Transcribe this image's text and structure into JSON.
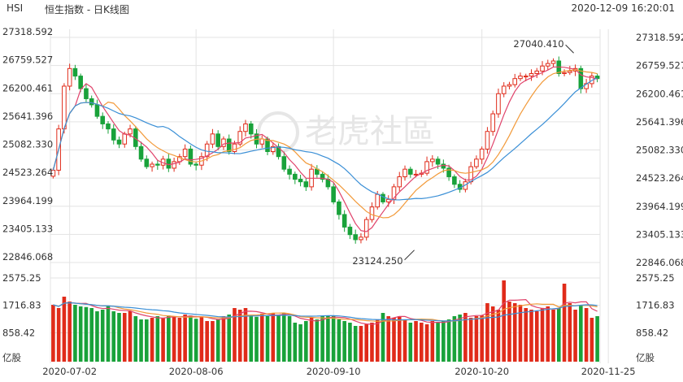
{
  "header": {
    "symbol": "HSI",
    "title": "恒生指数 - 日K线图",
    "datetime": "2020-12-09 16:20:01"
  },
  "watermark": "老虎社區",
  "colors": {
    "up": "#e02b1a",
    "down": "#19a23a",
    "ma5": "#e0436b",
    "ma10": "#f29a3a",
    "ma20": "#3a8fd6",
    "grid": "#e3e3e3"
  },
  "chart_data": [
    {
      "type": "candlestick",
      "title": "",
      "y_ticks": [
        "27318.592",
        "26759.527",
        "26200.461",
        "25641.396",
        "25082.330",
        "24523.264",
        "23964.199",
        "23405.133",
        "22846.068"
      ],
      "ylim": [
        22846.068,
        27318.592
      ],
      "x_ticks": [
        {
          "index": 3,
          "label": "2020-07-02"
        },
        {
          "index": 26,
          "label": "2020-08-06"
        },
        {
          "index": 51,
          "label": "2020-09-10"
        },
        {
          "index": 78,
          "label": "2020-10-20"
        },
        {
          "index": 101,
          "label": "2020-11-25"
        }
      ],
      "annotations": [
        {
          "index": 95,
          "value": 27040.41,
          "label": "27040.410"
        },
        {
          "index": 66,
          "value": 23124.25,
          "label": "23124.250"
        }
      ],
      "close": [
        24680,
        25500,
        26350,
        26700,
        26550,
        26300,
        26100,
        25980,
        25750,
        25600,
        25500,
        25280,
        25200,
        25400,
        25500,
        25150,
        24900,
        24750,
        24800,
        24780,
        24900,
        24720,
        24850,
        24950,
        25100,
        24800,
        24780,
        24950,
        25200,
        25400,
        25150,
        25300,
        25050,
        25200,
        25450,
        25600,
        25400,
        25200,
        25300,
        25050,
        25150,
        24950,
        24700,
        24600,
        24500,
        24450,
        24350,
        24700,
        24600,
        24500,
        24350,
        24050,
        23800,
        23550,
        23400,
        23300,
        23350,
        23700,
        23950,
        24200,
        24050,
        24100,
        24350,
        24550,
        24700,
        24600,
        24600,
        24620,
        24850,
        24900,
        24800,
        24720,
        24550,
        24400,
        24300,
        24450,
        24750,
        24900,
        25100,
        25450,
        25800,
        26200,
        26350,
        26380,
        26500,
        26550,
        26550,
        26600,
        26650,
        26750,
        26800,
        26850,
        26600,
        26620,
        26650,
        26700,
        26300,
        26400,
        26550,
        26500
      ],
      "volume": [
        1750,
        1650,
        2000,
        1850,
        1750,
        1700,
        1680,
        1650,
        1550,
        1600,
        1720,
        1550,
        1500,
        1500,
        1550,
        1400,
        1300,
        1300,
        1350,
        1400,
        1350,
        1420,
        1380,
        1350,
        1450,
        1420,
        1320,
        1380,
        1250,
        1250,
        1300,
        1400,
        1450,
        1650,
        1600,
        1650,
        1420,
        1380,
        1480,
        1400,
        1500,
        1420,
        1500,
        1400,
        1200,
        1150,
        1250,
        1350,
        1300,
        1400,
        1420,
        1400,
        1300,
        1250,
        1200,
        1100,
        1100,
        1150,
        1200,
        1300,
        1500,
        1400,
        1350,
        1400,
        1300,
        1200,
        1250,
        1200,
        1150,
        1250,
        1200,
        1250,
        1300,
        1400,
        1450,
        1500,
        1350,
        1400,
        1420,
        1800,
        1700,
        1600,
        2500,
        1850,
        1800,
        1750,
        1650,
        1600,
        1550,
        1650,
        1700,
        1600,
        1650,
        2400,
        1800,
        1600,
        1750,
        1650,
        1350,
        1400
      ],
      "volume_axis": {
        "ticks": [
          "2575.25",
          "1716.83",
          "858.42"
        ],
        "ylim": [
          0,
          2575.25
        ],
        "unit": "亿股"
      },
      "series_lines": [
        "ma5",
        "ma10",
        "ma20"
      ]
    }
  ]
}
